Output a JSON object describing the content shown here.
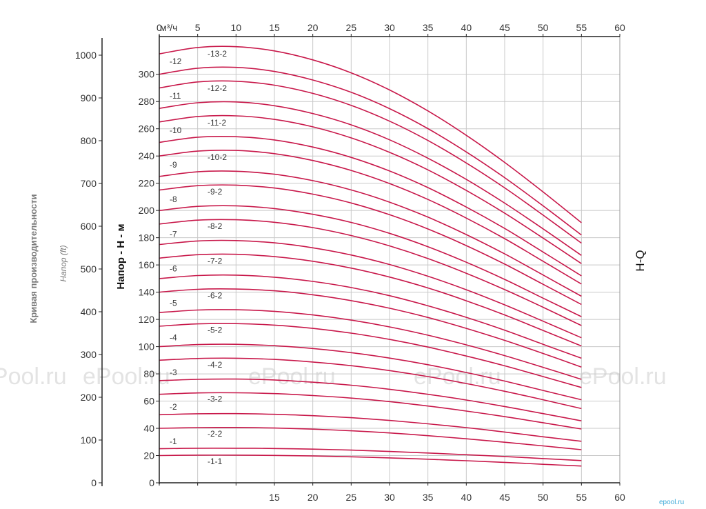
{
  "chart_data": {
    "type": "line",
    "title": "",
    "xlabel": "",
    "x_axis_top_unit": "м³/ч",
    "ylabel": "Напор - H - м",
    "ylabel_secondary": "Кривая производительности",
    "ylabel_secondary_unit": "Напор (ft)",
    "curve_label_right": "H-Q",
    "xlim": [
      0,
      60
    ],
    "ylim": [
      0,
      315
    ],
    "ylim_ft": [
      0,
      1033
    ],
    "grid": true,
    "x_ticks_top": [
      "0",
      "5",
      "10",
      "15",
      "20",
      "25",
      "30",
      "35",
      "40",
      "45",
      "50",
      "55",
      "60"
    ],
    "x_ticks_bottom": [
      "15",
      "20",
      "25",
      "30",
      "35",
      "40",
      "45",
      "50",
      "55",
      "60"
    ],
    "y_ticks": [
      "0",
      "20",
      "40",
      "60",
      "80",
      "100",
      "120",
      "140",
      "160",
      "180",
      "200",
      "220",
      "240",
      "260",
      "280",
      "300"
    ],
    "y_ticks_ft": [
      "0",
      "100",
      "200",
      "300",
      "400",
      "500",
      "600",
      "700",
      "800",
      "900",
      "1000"
    ],
    "x": [
      0,
      5,
      10,
      15,
      20,
      25,
      30,
      35,
      40,
      45,
      50,
      55
    ],
    "series": [
      {
        "name": "-1-1",
        "values": [
          20,
          20.3,
          20.3,
          20.1,
          19.7,
          19.1,
          18.3,
          17.3,
          16.2,
          15,
          13.6,
          12.3
        ]
      },
      {
        "name": "-1",
        "values": [
          25,
          25.4,
          25.4,
          25.2,
          24.7,
          24,
          23,
          21.9,
          20.6,
          19.3,
          17.8,
          16.3
        ]
      },
      {
        "name": "-2-2",
        "values": [
          40,
          40.5,
          40.6,
          40.2,
          39.4,
          38.2,
          36.6,
          34.6,
          32.3,
          29.8,
          27.1,
          24.3
        ]
      },
      {
        "name": "-2",
        "values": [
          50,
          50.7,
          50.8,
          50.3,
          49.3,
          47.8,
          45.8,
          43.3,
          40.5,
          37.3,
          33.8,
          30.5
        ]
      },
      {
        "name": "-3-2",
        "values": [
          65,
          66,
          66.1,
          65.5,
          64.1,
          62.2,
          59.6,
          56.4,
          52.7,
          48.6,
          44.1,
          39.5
        ]
      },
      {
        "name": "-3",
        "values": [
          75,
          76,
          76.2,
          75.5,
          73.9,
          71.7,
          68.7,
          65,
          60.8,
          56,
          50.8,
          45.5
        ]
      },
      {
        "name": "-4-2",
        "values": [
          90,
          91.3,
          91.5,
          90.6,
          88.7,
          86,
          82.4,
          78,
          72.9,
          67.2,
          61,
          54.5
        ]
      },
      {
        "name": "-4",
        "values": [
          100,
          101.5,
          101.7,
          100.7,
          98.6,
          95.6,
          91.6,
          86.7,
          81,
          74.7,
          67.8,
          61
        ]
      },
      {
        "name": "-5-2",
        "values": [
          115,
          116.7,
          116.9,
          115.8,
          113.4,
          109.9,
          105.3,
          99.7,
          93.1,
          85.9,
          78,
          70
        ]
      },
      {
        "name": "-5",
        "values": [
          125,
          126.9,
          127.1,
          125.9,
          123.3,
          119.5,
          114.5,
          108.4,
          101.3,
          93.4,
          84.8,
          76
        ]
      },
      {
        "name": "-6-2",
        "values": [
          140,
          142.1,
          142.3,
          141,
          138.1,
          133.8,
          128.2,
          121.4,
          113.4,
          104.6,
          95,
          85
        ]
      },
      {
        "name": "-6",
        "values": [
          150,
          152.2,
          152.5,
          151,
          147.9,
          143.4,
          137.4,
          130,
          121.5,
          112.1,
          101.7,
          91.5
        ]
      },
      {
        "name": "-7-2",
        "values": [
          165,
          167.5,
          167.8,
          166.1,
          162.7,
          157.7,
          151.1,
          143.1,
          133.7,
          123.3,
          111.9,
          100.5
        ]
      },
      {
        "name": "-7",
        "values": [
          175,
          177.6,
          177.9,
          176.2,
          172.6,
          167.3,
          160.3,
          151.7,
          141.8,
          130.7,
          118.7,
          106.5
        ]
      },
      {
        "name": "-8-2",
        "values": [
          190,
          192.9,
          193.2,
          191.3,
          187.4,
          181.6,
          174,
          164.7,
          153.9,
          141.9,
          128.9,
          115.5
        ]
      },
      {
        "name": "-8",
        "values": [
          200,
          203,
          203.4,
          201.4,
          197.2,
          191.2,
          183.2,
          173.4,
          162,
          149.4,
          135.6,
          122
        ]
      },
      {
        "name": "-9-2",
        "values": [
          215,
          218.2,
          218.6,
          216.5,
          212,
          205.5,
          196.9,
          186.4,
          174.2,
          160.6,
          145.8,
          131
        ]
      },
      {
        "name": "-9",
        "values": [
          225,
          228.4,
          228.8,
          226.6,
          221.9,
          215.1,
          206.1,
          195.1,
          182.3,
          168.1,
          152.6,
          137
        ]
      },
      {
        "name": "-10-2",
        "values": [
          240,
          243.6,
          244.1,
          241.7,
          236.7,
          229.4,
          219.8,
          208.1,
          194.4,
          179.3,
          162.7,
          146
        ]
      },
      {
        "name": "-10",
        "values": [
          250,
          253.8,
          254.2,
          251.8,
          246.6,
          239,
          229,
          216.8,
          202.5,
          186.8,
          169.5,
          152
        ]
      },
      {
        "name": "-11-2",
        "values": [
          265,
          269,
          269.5,
          266.9,
          261.4,
          253.3,
          242.7,
          229.8,
          214.7,
          198,
          179.7,
          161
        ]
      },
      {
        "name": "-11",
        "values": [
          275,
          279.1,
          279.7,
          276.9,
          271.2,
          262.9,
          251.9,
          238.4,
          222.8,
          205.4,
          186.5,
          167
        ]
      },
      {
        "name": "-12-2",
        "values": [
          290,
          294.4,
          294.9,
          292,
          286,
          277.2,
          265.6,
          251.4,
          234.9,
          216.6,
          196.6,
          176
        ]
      },
      {
        "name": "-12",
        "values": [
          300,
          304.5,
          305.1,
          302.1,
          295.8,
          286.8,
          274.8,
          260.1,
          243,
          224.1,
          203.4,
          182
        ]
      },
      {
        "name": "-13-2",
        "values": [
          315,
          319.7,
          320.3,
          317.2,
          310.6,
          301.1,
          288.5,
          273.1,
          255.2,
          235.3,
          213.6,
          191
        ]
      }
    ],
    "colors": {
      "curve": "#c8184a",
      "grid": "#c8c8c8",
      "axis": "#222222"
    }
  },
  "watermarks": [
    "ePool.ru",
    "ePool.ru",
    "ePool.ru",
    "ePool.ru",
    "ePool.ru"
  ],
  "brand": "epool.ru"
}
